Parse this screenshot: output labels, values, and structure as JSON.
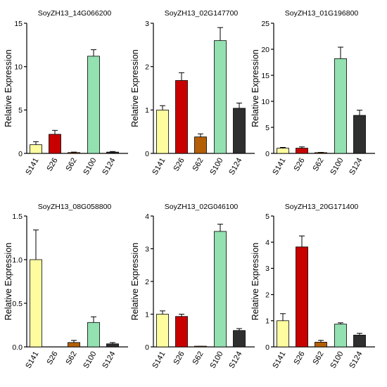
{
  "ylabel": "Relative Expression",
  "colors": {
    "S141": "#fdfd9f",
    "S26": "#c80000",
    "S62": "#b45f06",
    "S100": "#93e0b0",
    "S124": "#2f2f2f",
    "stroke": "#000000"
  },
  "chart_data": [
    {
      "type": "bar",
      "title": "SoyZH13_14G066200",
      "ylabel": "Relative Expression",
      "categories": [
        "S141",
        "S26",
        "S62",
        "S100",
        "S124"
      ],
      "values": [
        1.0,
        2.2,
        0.1,
        11.2,
        0.15
      ],
      "errors": [
        0.35,
        0.45,
        0.05,
        0.75,
        0.07
      ],
      "ylim": [
        0,
        15
      ],
      "yticks": [
        "0",
        "5",
        "10",
        "15"
      ],
      "grid": false
    },
    {
      "type": "bar",
      "title": "SoyZH13_02G147700",
      "ylabel": "Relative Expression",
      "categories": [
        "S141",
        "S26",
        "S62",
        "S100",
        "S124"
      ],
      "values": [
        1.0,
        1.68,
        0.38,
        2.6,
        1.04
      ],
      "errors": [
        0.1,
        0.18,
        0.07,
        0.3,
        0.12
      ],
      "ylim": [
        0,
        3
      ],
      "yticks": [
        "0",
        "1",
        "2",
        "3"
      ],
      "grid": false
    },
    {
      "type": "bar",
      "title": "SoyZH13_01G196800",
      "ylabel": "Relative Expression",
      "categories": [
        "S141",
        "S26",
        "S62",
        "S100",
        "S124"
      ],
      "values": [
        1.0,
        1.0,
        0.15,
        18.2,
        7.3
      ],
      "errors": [
        0.15,
        0.25,
        0.05,
        2.2,
        1.0
      ],
      "ylim": [
        0,
        25
      ],
      "yticks": [
        "0",
        "5",
        "10",
        "15",
        "20",
        "25"
      ],
      "grid": false
    },
    {
      "type": "bar",
      "title": "SoyZH13_08G058800",
      "ylabel": "Relative Expression",
      "categories": [
        "S141",
        "S26",
        "S62",
        "S100",
        "S124"
      ],
      "values": [
        1.0,
        0.0,
        0.05,
        0.28,
        0.035
      ],
      "errors": [
        0.34,
        0.0,
        0.025,
        0.065,
        0.015
      ],
      "ylim": [
        0,
        1.5
      ],
      "yticks": [
        "0.0",
        "0.5",
        "1.0",
        "1.5"
      ],
      "grid": false
    },
    {
      "type": "bar",
      "title": "SoyZH13_02G046100",
      "ylabel": "Relative Expression",
      "categories": [
        "S141",
        "S26",
        "S62",
        "S100",
        "S124"
      ],
      "values": [
        1.0,
        0.93,
        0.01,
        3.53,
        0.5
      ],
      "errors": [
        0.1,
        0.07,
        0.005,
        0.22,
        0.06
      ],
      "ylim": [
        0,
        4
      ],
      "yticks": [
        "0",
        "1",
        "2",
        "3",
        "4"
      ],
      "grid": false
    },
    {
      "type": "bar",
      "title": "SoyZH13_20G171400",
      "ylabel": "Relative Expression",
      "categories": [
        "S141",
        "S26",
        "S62",
        "S100",
        "S124"
      ],
      "values": [
        1.0,
        3.82,
        0.18,
        0.87,
        0.45
      ],
      "errors": [
        0.27,
        0.42,
        0.07,
        0.05,
        0.07
      ],
      "ylim": [
        0,
        5
      ],
      "yticks": [
        "0",
        "1",
        "2",
        "3",
        "4",
        "5"
      ],
      "grid": false
    }
  ]
}
